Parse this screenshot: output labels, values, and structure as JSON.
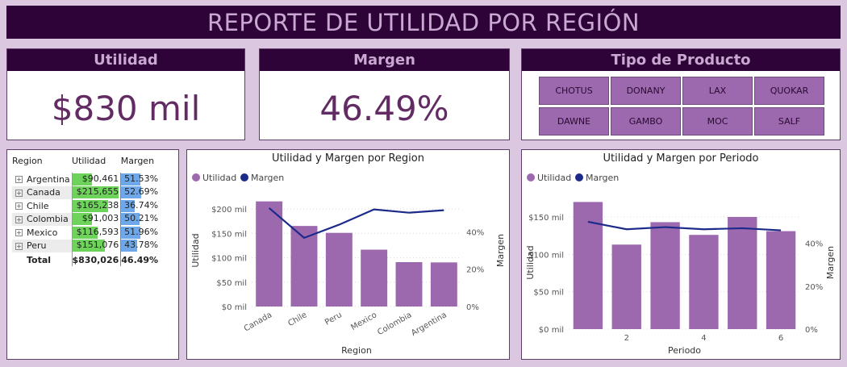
{
  "banner": {
    "title": "REPORTE DE UTILIDAD POR REGIÓN"
  },
  "kpis": {
    "utilidad": {
      "label": "Utilidad",
      "value": "$830 mil"
    },
    "margen": {
      "label": "Margen",
      "value": "46.49%"
    }
  },
  "slicer": {
    "title": "Tipo de Producto",
    "options": [
      "CHOTUS",
      "DONANY",
      "LAX",
      "QUOKAR",
      "DAWNE",
      "GAMBO",
      "MOC",
      "SALF"
    ]
  },
  "table": {
    "headers": [
      "Region",
      "Utilidad",
      "Margen"
    ],
    "rows": [
      {
        "region": "Argentina",
        "utilidad": "$90,461",
        "margen": "51.53%",
        "u": 90461,
        "m": 51.53
      },
      {
        "region": "Canada",
        "utilidad": "$215,655",
        "margen": "52.69%",
        "u": 215655,
        "m": 52.69
      },
      {
        "region": "Chile",
        "utilidad": "$165,238",
        "margen": "36.74%",
        "u": 165238,
        "m": 36.74
      },
      {
        "region": "Colombia",
        "utilidad": "$91,003",
        "margen": "50.21%",
        "u": 91003,
        "m": 50.21
      },
      {
        "region": "Mexico",
        "utilidad": "$116,593",
        "margen": "51.96%",
        "u": 116593,
        "m": 51.96
      },
      {
        "region": "Peru",
        "utilidad": "$151,076",
        "margen": "43.78%",
        "u": 151076,
        "m": 43.78
      }
    ],
    "total": {
      "label": "Total",
      "utilidad": "$830,026",
      "margen": "46.49%"
    },
    "expand_icon": "plus-box-icon",
    "colors": {
      "utilidad_bar": "#6dd35a",
      "margen_bar": "#6fa8e8"
    }
  },
  "colors": {
    "bar": "#9c68ae",
    "line": "#1c2a8a",
    "header_bg": "#2e0438",
    "header_text": "#c9a8d2"
  },
  "chart_data": [
    {
      "type": "bar",
      "title": "Utilidad y Margen por Region",
      "legend": [
        "Utilidad",
        "Margen"
      ],
      "legend_position": "top-left",
      "xlabel": "Region",
      "ylabel": "Utilidad",
      "y2label": "Margen",
      "categories": [
        "Canada",
        "Chile",
        "Peru",
        "Mexico",
        "Colombia",
        "Argentina"
      ],
      "series": [
        {
          "name": "Utilidad",
          "type": "bar",
          "values": [
            215655,
            165238,
            151076,
            116593,
            91003,
            90461
          ]
        },
        {
          "name": "Margen",
          "type": "line",
          "axis": "secondary",
          "values": [
            52.69,
            36.74,
            43.78,
            51.96,
            50.21,
            51.53
          ]
        }
      ],
      "ylim": [
        0,
        230000
      ],
      "yticks": [
        "$0 mil",
        "$50 mil",
        "$100 mil",
        "$150 mil",
        "$200 mil"
      ],
      "y2lim": [
        0,
        60
      ],
      "y2ticks": [
        "0%",
        "20%",
        "40%"
      ],
      "grid": true
    },
    {
      "type": "bar",
      "title": "Utilidad y Margen por Periodo",
      "legend": [
        "Utilidad",
        "Margen"
      ],
      "legend_position": "top-left",
      "xlabel": "Periodo",
      "ylabel": "Utilidad",
      "y2label": "Margen",
      "categories": [
        1,
        2,
        3,
        4,
        5,
        6
      ],
      "xticks": [
        "2",
        "4",
        "6"
      ],
      "series": [
        {
          "name": "Utilidad",
          "type": "bar",
          "values": [
            170000,
            113000,
            143000,
            126000,
            150000,
            131000
          ]
        },
        {
          "name": "Margen",
          "type": "line",
          "axis": "secondary",
          "values": [
            50.0,
            46.5,
            47.5,
            46.5,
            47.0,
            46.0
          ]
        }
      ],
      "ylim": [
        0,
        178000
      ],
      "yticks": [
        "$0 mil",
        "$50 mil",
        "$100 mil",
        "$150 mil"
      ],
      "y2lim": [
        0,
        62
      ],
      "y2ticks": [
        "0%",
        "20%",
        "40%"
      ],
      "grid": true
    }
  ]
}
